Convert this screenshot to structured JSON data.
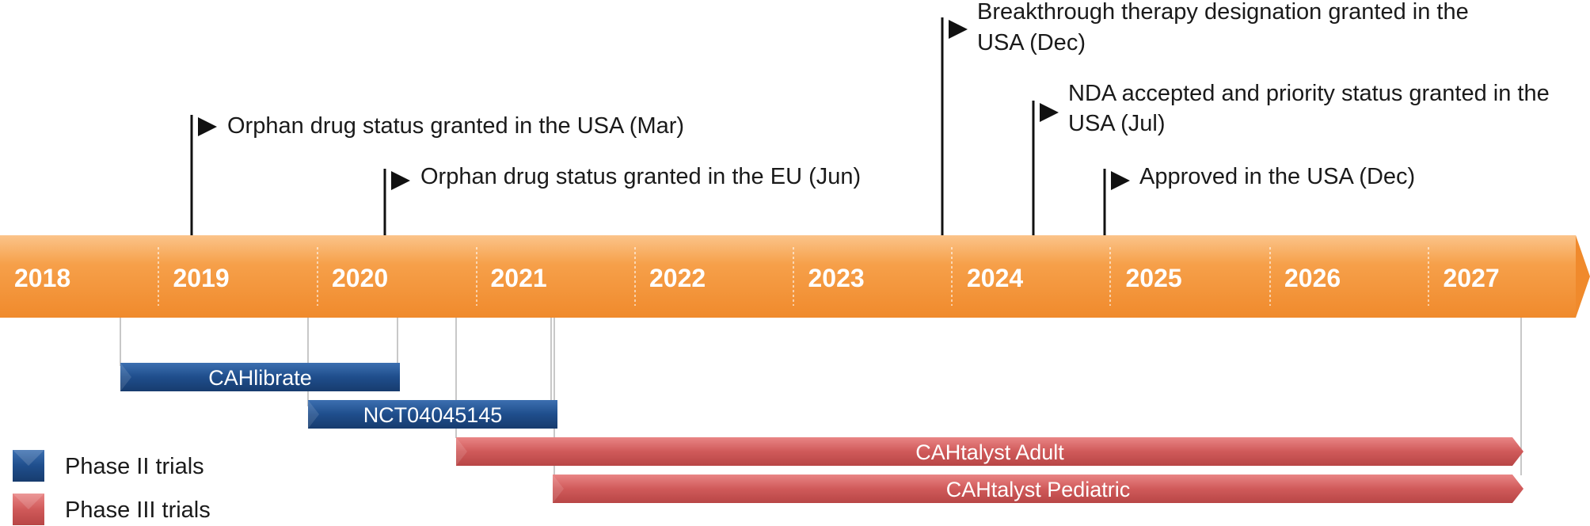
{
  "timeline": {
    "years": [
      "2018",
      "2019",
      "2020",
      "2021",
      "2022",
      "2023",
      "2024",
      "2025",
      "2026",
      "2027"
    ],
    "bar_color": "#f6a04a"
  },
  "events": [
    {
      "lines": [
        "Orphan drug status granted in the USA (Mar)"
      ]
    },
    {
      "lines": [
        "Orphan drug status granted in the EU (Jun)"
      ]
    },
    {
      "lines": [
        "Breakthrough therapy designation granted in the",
        "USA (Dec)"
      ]
    },
    {
      "lines": [
        "NDA accepted and priority status granted in the",
        "USA (Jul)"
      ]
    },
    {
      "lines": [
        "Approved in the USA (Dec)"
      ]
    }
  ],
  "trials": [
    {
      "label": "CAHlibrate",
      "phase": "II"
    },
    {
      "label": "NCT04045145",
      "phase": "II"
    },
    {
      "label": "CAHtalyst Adult",
      "phase": "III"
    },
    {
      "label": "CAHtalyst Pediatric",
      "phase": "III"
    }
  ],
  "legend": [
    {
      "label": "Phase II trials",
      "color": "#1f4e8c"
    },
    {
      "label": "Phase III trials",
      "color": "#d05a5a"
    }
  ]
}
